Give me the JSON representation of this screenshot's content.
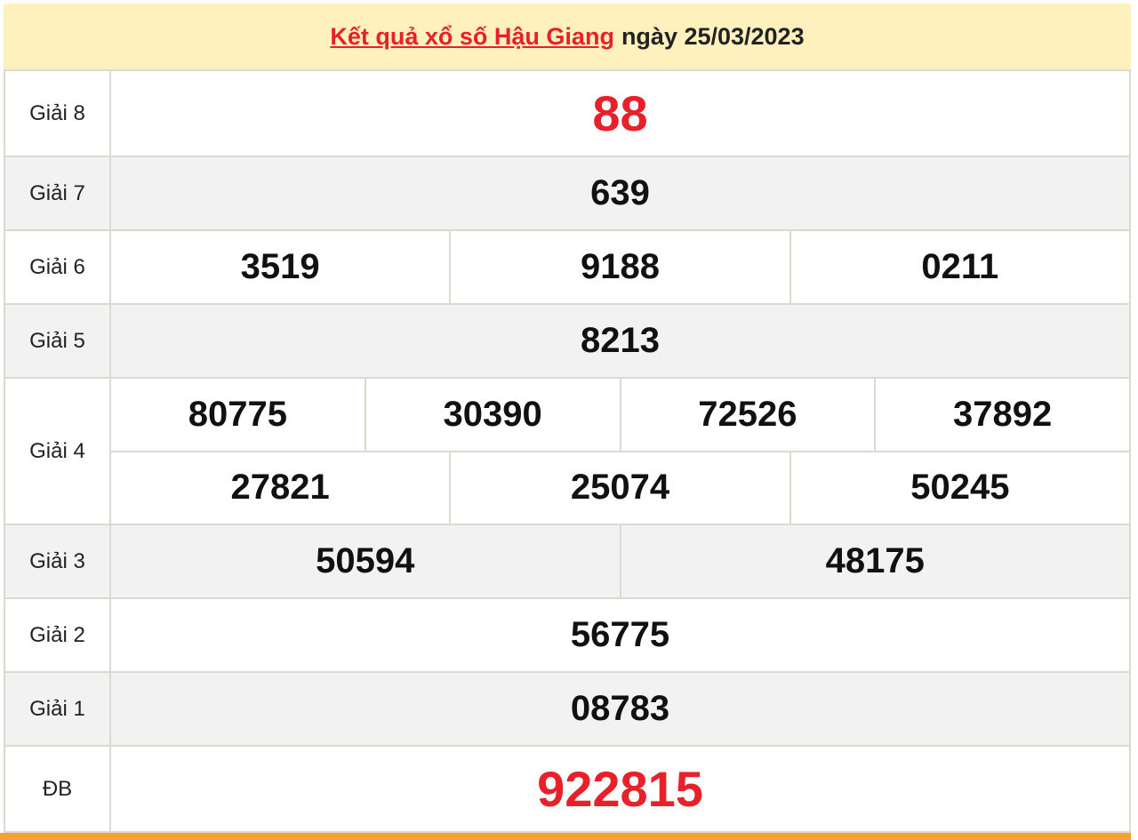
{
  "header": {
    "title_link": "Kết quả xổ số Hậu Giang",
    "title_suffix": "ngày 25/03/2023"
  },
  "prizes": [
    {
      "label": "Giải 8",
      "rows": [
        [
          "88"
        ]
      ]
    },
    {
      "label": "Giải 7",
      "rows": [
        [
          "639"
        ]
      ]
    },
    {
      "label": "Giải 6",
      "rows": [
        [
          "3519",
          "9188",
          "0211"
        ]
      ]
    },
    {
      "label": "Giải 5",
      "rows": [
        [
          "8213"
        ]
      ]
    },
    {
      "label": "Giải 4",
      "rows": [
        [
          "80775",
          "30390",
          "72526",
          "37892"
        ],
        [
          "27821",
          "25074",
          "50245"
        ]
      ]
    },
    {
      "label": "Giải 3",
      "rows": [
        [
          "50594",
          "48175"
        ]
      ]
    },
    {
      "label": "Giải 2",
      "rows": [
        [
          "56775"
        ]
      ]
    },
    {
      "label": "Giải 1",
      "rows": [
        [
          "08783"
        ]
      ]
    },
    {
      "label": "ĐB",
      "rows": [
        [
          "922815"
        ]
      ]
    }
  ],
  "colors": {
    "accent_red": "#e8202a",
    "header_bg": "#fff1bd",
    "footer_bar": "#f7a030"
  }
}
